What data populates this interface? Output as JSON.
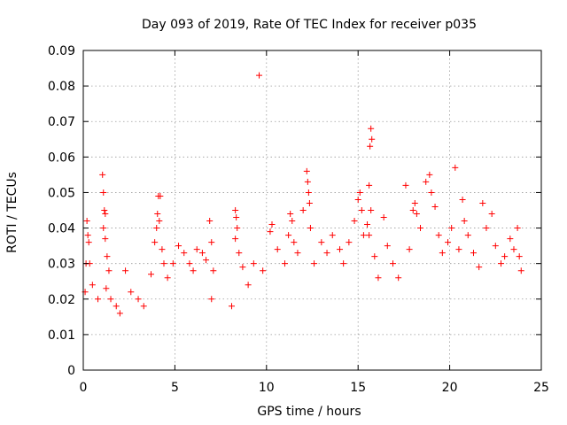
{
  "chart_data": {
    "type": "scatter",
    "title": "Day 093 of 2019, Rate Of TEC Index for receiver p035",
    "xlabel": "GPS time / hours",
    "ylabel": "ROTI / TECUs",
    "xlim": [
      0,
      25
    ],
    "ylim": [
      0,
      0.09
    ],
    "x_ticks": [
      0,
      5,
      10,
      15,
      20,
      25
    ],
    "x_tick_labels": [
      "0",
      "5",
      "10",
      "15",
      "20",
      "25"
    ],
    "y_ticks": [
      0,
      0.01,
      0.02,
      0.03,
      0.04,
      0.05,
      0.06,
      0.07,
      0.08,
      0.09
    ],
    "y_tick_labels": [
      "0",
      "0.01",
      "0.02",
      "0.03",
      "0.04",
      "0.05",
      "0.06",
      "0.07",
      "0.08",
      "0.09"
    ],
    "grid": true,
    "marker": "+",
    "colors": {
      "points": "#ff0000",
      "grid": "#9a9a9a",
      "frame": "#000000"
    },
    "series": [
      {
        "points": [
          [
            0.2,
            0.042
          ],
          [
            0.25,
            0.038
          ],
          [
            0.3,
            0.036
          ],
          [
            0.15,
            0.03
          ],
          [
            0.35,
            0.03
          ],
          [
            0.1,
            0.022
          ],
          [
            0.5,
            0.024
          ],
          [
            0.8,
            0.02
          ],
          [
            1.05,
            0.055
          ],
          [
            1.1,
            0.05
          ],
          [
            1.15,
            0.045
          ],
          [
            1.2,
            0.044
          ],
          [
            1.1,
            0.04
          ],
          [
            1.2,
            0.037
          ],
          [
            1.3,
            0.032
          ],
          [
            1.4,
            0.028
          ],
          [
            1.25,
            0.023
          ],
          [
            1.5,
            0.02
          ],
          [
            1.8,
            0.018
          ],
          [
            2.0,
            0.016
          ],
          [
            2.3,
            0.028
          ],
          [
            2.6,
            0.022
          ],
          [
            3.0,
            0.02
          ],
          [
            3.3,
            0.018
          ],
          [
            3.7,
            0.027
          ],
          [
            4.0,
            0.04
          ],
          [
            4.1,
            0.049
          ],
          [
            4.2,
            0.049
          ],
          [
            4.05,
            0.044
          ],
          [
            4.15,
            0.042
          ],
          [
            3.9,
            0.036
          ],
          [
            4.3,
            0.034
          ],
          [
            4.4,
            0.03
          ],
          [
            4.6,
            0.026
          ],
          [
            4.9,
            0.03
          ],
          [
            5.2,
            0.035
          ],
          [
            5.5,
            0.033
          ],
          [
            5.8,
            0.03
          ],
          [
            6.0,
            0.028
          ],
          [
            6.2,
            0.034
          ],
          [
            6.5,
            0.033
          ],
          [
            6.7,
            0.031
          ],
          [
            6.9,
            0.042
          ],
          [
            7.0,
            0.036
          ],
          [
            7.1,
            0.028
          ],
          [
            7.0,
            0.02
          ],
          [
            8.1,
            0.018
          ],
          [
            8.3,
            0.045
          ],
          [
            8.35,
            0.043
          ],
          [
            8.4,
            0.04
          ],
          [
            8.3,
            0.037
          ],
          [
            8.5,
            0.033
          ],
          [
            8.7,
            0.029
          ],
          [
            9.0,
            0.024
          ],
          [
            9.3,
            0.03
          ],
          [
            9.6,
            0.083
          ],
          [
            9.8,
            0.028
          ],
          [
            10.2,
            0.039
          ],
          [
            10.3,
            0.041
          ],
          [
            10.6,
            0.034
          ],
          [
            11.0,
            0.03
          ],
          [
            11.2,
            0.038
          ],
          [
            11.3,
            0.044
          ],
          [
            11.4,
            0.042
          ],
          [
            11.5,
            0.036
          ],
          [
            11.7,
            0.033
          ],
          [
            12.0,
            0.045
          ],
          [
            12.2,
            0.056
          ],
          [
            12.25,
            0.053
          ],
          [
            12.3,
            0.05
          ],
          [
            12.35,
            0.047
          ],
          [
            12.4,
            0.04
          ],
          [
            12.6,
            0.03
          ],
          [
            13.0,
            0.036
          ],
          [
            13.3,
            0.033
          ],
          [
            13.6,
            0.038
          ],
          [
            14.0,
            0.034
          ],
          [
            14.2,
            0.03
          ],
          [
            14.5,
            0.036
          ],
          [
            14.8,
            0.042
          ],
          [
            15.0,
            0.048
          ],
          [
            15.1,
            0.05
          ],
          [
            15.2,
            0.045
          ],
          [
            15.3,
            0.038
          ],
          [
            15.5,
            0.041
          ],
          [
            15.6,
            0.052
          ],
          [
            15.7,
            0.068
          ],
          [
            15.65,
            0.063
          ],
          [
            15.75,
            0.065
          ],
          [
            15.7,
            0.045
          ],
          [
            15.6,
            0.038
          ],
          [
            15.9,
            0.032
          ],
          [
            16.1,
            0.026
          ],
          [
            16.4,
            0.043
          ],
          [
            16.6,
            0.035
          ],
          [
            16.9,
            0.03
          ],
          [
            17.2,
            0.026
          ],
          [
            17.6,
            0.052
          ],
          [
            17.8,
            0.034
          ],
          [
            18.0,
            0.045
          ],
          [
            18.1,
            0.047
          ],
          [
            18.2,
            0.044
          ],
          [
            18.4,
            0.04
          ],
          [
            18.7,
            0.053
          ],
          [
            18.9,
            0.055
          ],
          [
            19.0,
            0.05
          ],
          [
            19.2,
            0.046
          ],
          [
            19.4,
            0.038
          ],
          [
            19.6,
            0.033
          ],
          [
            19.9,
            0.036
          ],
          [
            20.1,
            0.04
          ],
          [
            20.3,
            0.057
          ],
          [
            20.5,
            0.034
          ],
          [
            20.7,
            0.048
          ],
          [
            20.8,
            0.042
          ],
          [
            21.0,
            0.038
          ],
          [
            21.3,
            0.033
          ],
          [
            21.6,
            0.029
          ],
          [
            21.8,
            0.047
          ],
          [
            22.0,
            0.04
          ],
          [
            22.3,
            0.044
          ],
          [
            22.5,
            0.035
          ],
          [
            22.8,
            0.03
          ],
          [
            23.0,
            0.032
          ],
          [
            23.3,
            0.037
          ],
          [
            23.5,
            0.034
          ],
          [
            23.7,
            0.04
          ],
          [
            23.8,
            0.032
          ],
          [
            23.9,
            0.028
          ]
        ]
      }
    ]
  }
}
